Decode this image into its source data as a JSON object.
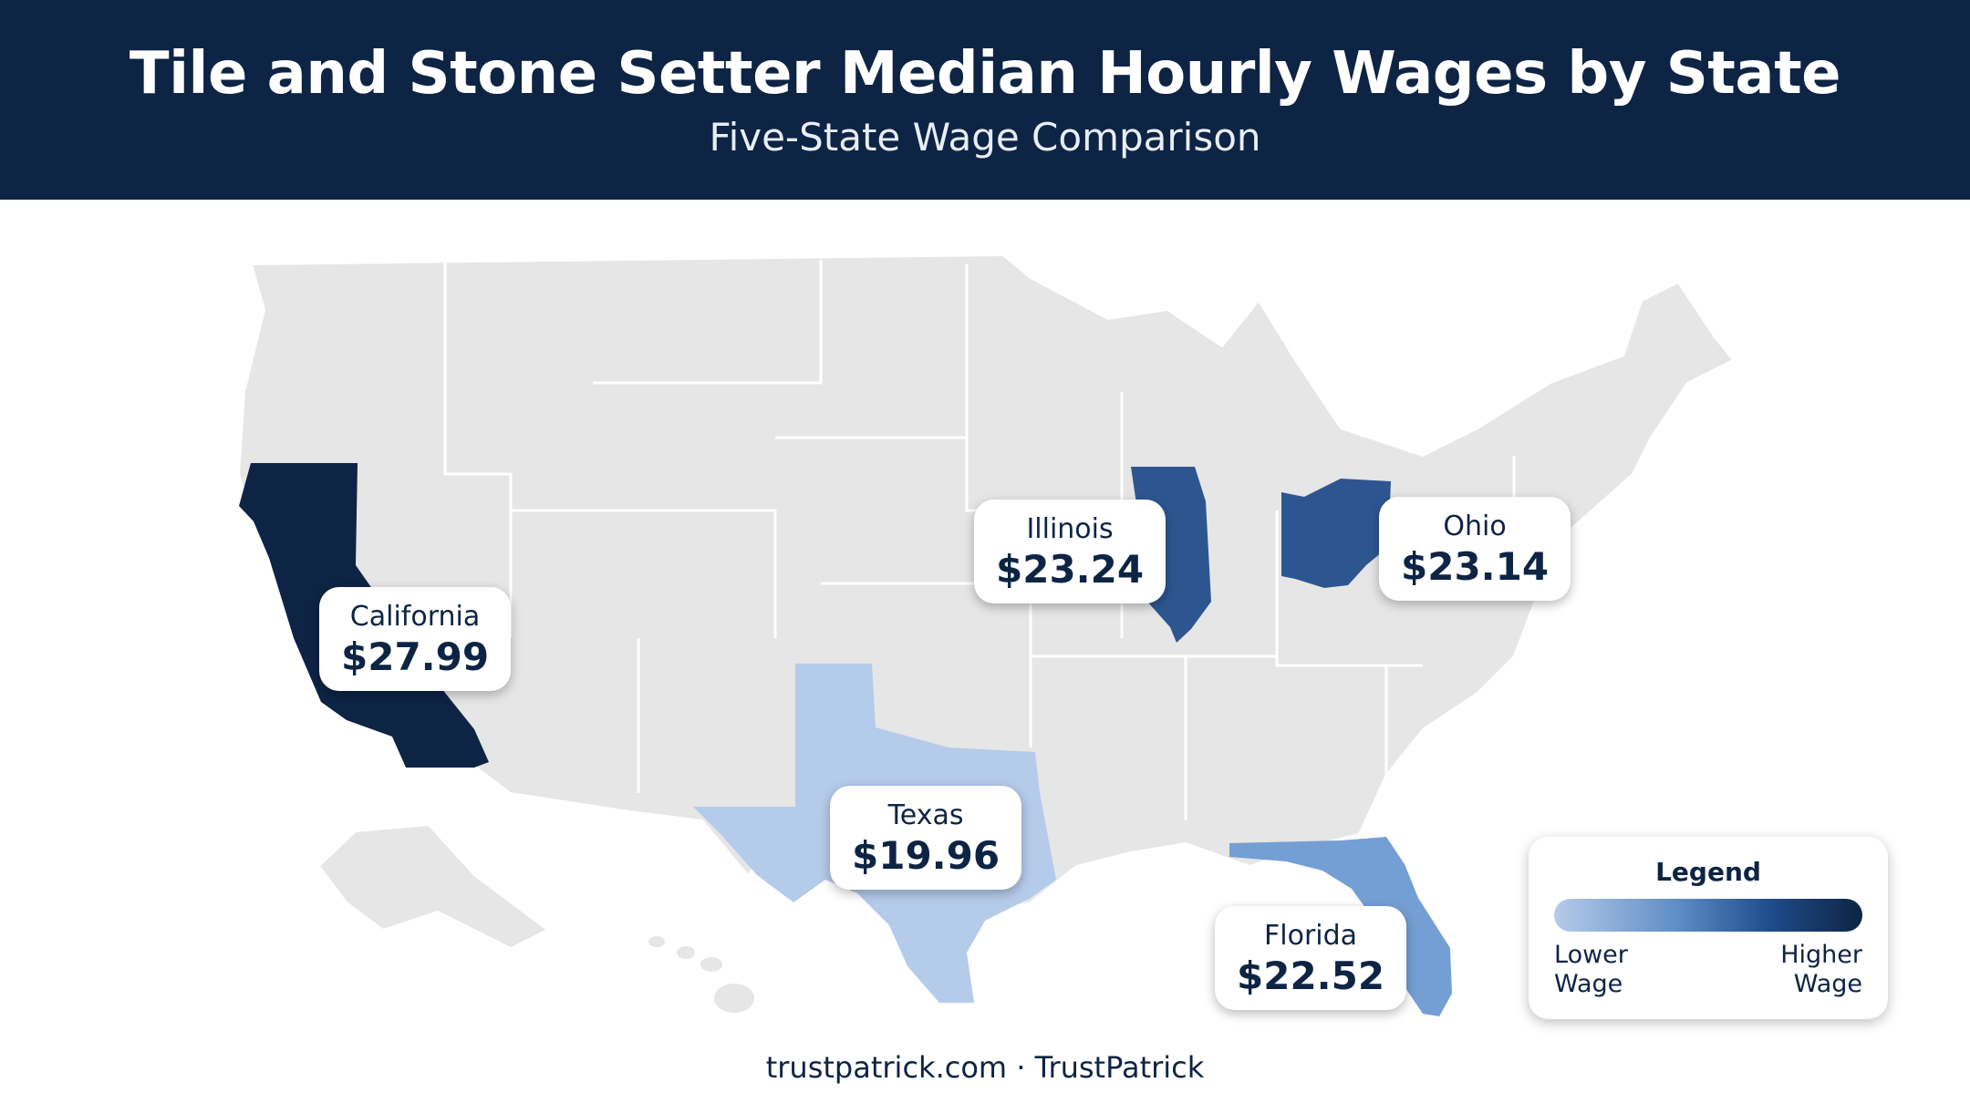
{
  "header": {
    "title": "Tile and Stone Setter Median Hourly Wages by State",
    "subtitle": "Five-State Wage Comparison"
  },
  "map": {
    "region": "United States",
    "base_fill": "#e6e6e6",
    "border_color": "#ffffff",
    "highlighted_states": [
      {
        "name": "California",
        "wage": "$27.99",
        "fill": "#0d2444"
      },
      {
        "name": "Illinois",
        "wage": "$23.24",
        "fill": "#2d5690"
      },
      {
        "name": "Ohio",
        "wage": "$23.14",
        "fill": "#2d5690"
      },
      {
        "name": "Texas",
        "wage": "$19.96",
        "fill": "#b5cbea"
      },
      {
        "name": "Florida",
        "wage": "$22.52",
        "fill": "#749fd4"
      }
    ]
  },
  "legend": {
    "title": "Legend",
    "low_label": "Lower Wage",
    "high_label": "Higher Wage",
    "low_color": "#b5cbea",
    "high_color": "#0d2444"
  },
  "footer": {
    "credit": "trustpatrick.com · TrustPatrick"
  }
}
